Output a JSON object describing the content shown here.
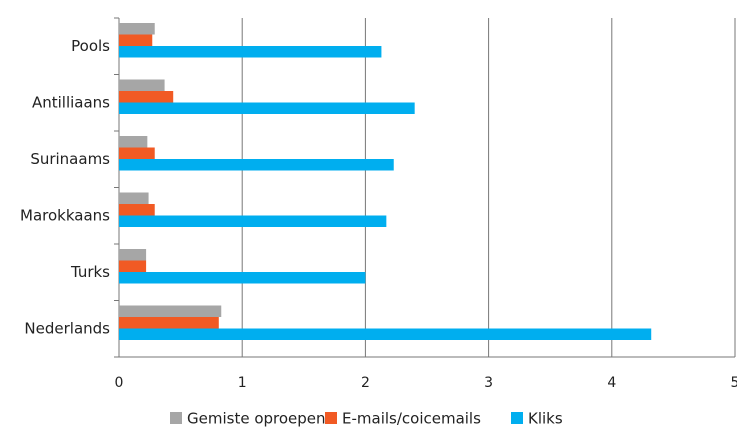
{
  "chart_data": {
    "type": "hbar",
    "categories": [
      "Pools",
      "Antilliaans",
      "Surinaams",
      "Marokkaans",
      "Turks",
      "Nederlands"
    ],
    "series": [
      {
        "name": "Gemiste oproepen",
        "color": "#a6a6a6",
        "values": [
          0.29,
          0.37,
          0.23,
          0.24,
          0.22,
          0.83
        ]
      },
      {
        "name": "E-mails/coicemails",
        "color": "#f15a24",
        "values": [
          0.27,
          0.44,
          0.29,
          0.29,
          0.22,
          0.81
        ]
      },
      {
        "name": "Kliks",
        "color": "#00aeef",
        "values": [
          2.13,
          2.4,
          2.23,
          2.17,
          2.0,
          4.32
        ]
      }
    ],
    "xlim": [
      0,
      5
    ],
    "xticks": [
      0,
      1,
      2,
      3,
      4,
      5
    ],
    "grid": true,
    "legend": "bottom"
  }
}
